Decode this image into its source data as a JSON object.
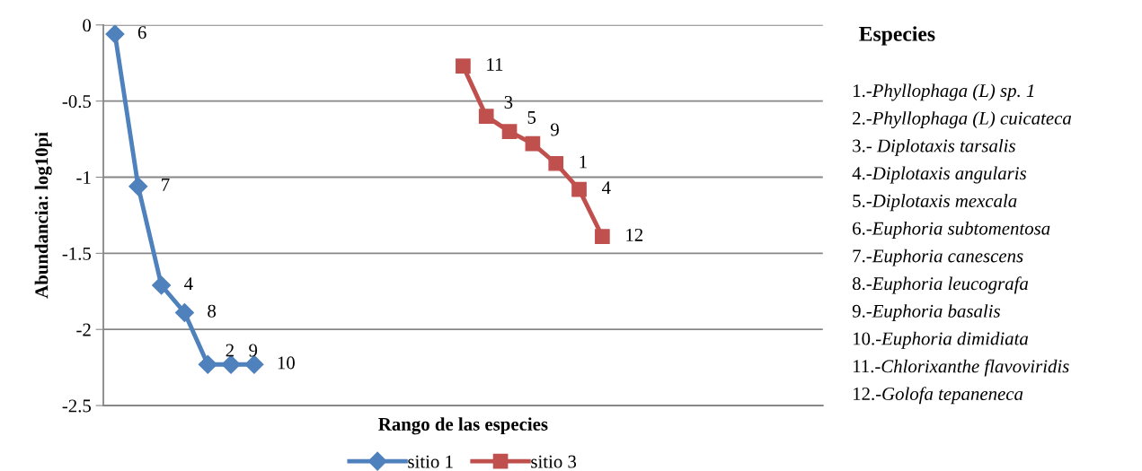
{
  "chart_data": {
    "type": "line",
    "xlabel": "Rango de las especies",
    "ylabel": "Abundancia: log10pi",
    "categories": [
      null,
      null,
      null,
      null,
      null,
      null,
      null,
      null,
      null,
      null,
      null,
      null,
      null,
      null,
      null,
      null,
      null,
      null,
      null,
      null,
      null,
      null,
      null,
      null,
      null,
      null,
      null,
      null,
      null,
      null,
      null
    ],
    "series": [
      {
        "name": "sitio 1",
        "color": "#4f81bd",
        "marker": "diamond",
        "values": [
          -0.06,
          -1.06,
          -1.71,
          -1.89,
          -2.23,
          -2.23,
          -2.23,
          null,
          null,
          null,
          null,
          null,
          null,
          null,
          null,
          null,
          null,
          null,
          null,
          null,
          null,
          null,
          null,
          null,
          null,
          null,
          null,
          null,
          null,
          null,
          null
        ]
      },
      {
        "name": "sitio 3",
        "color": "#c0504d",
        "marker": "square",
        "values": [
          null,
          null,
          null,
          null,
          null,
          null,
          null,
          null,
          null,
          null,
          null,
          null,
          null,
          null,
          null,
          -0.27,
          -0.6,
          -0.7,
          -0.78,
          -0.91,
          -1.08,
          -1.39,
          null,
          null,
          null,
          null,
          null,
          null,
          null,
          null,
          null
        ]
      }
    ],
    "ylim": [
      -2.5,
      0
    ],
    "yticks": [
      -2.5,
      -2,
      -1.5,
      -1,
      -0.5,
      0
    ],
    "grid": "y",
    "legend": "bottom",
    "line_style": "solid",
    "annotations": [
      "6",
      "7",
      "4",
      "8",
      "2",
      "9",
      "10",
      "11",
      "3",
      "5",
      "9",
      "1",
      "4",
      "12",
      "Especies",
      "1.-Phyllophaga (L) sp. 1",
      "2.-Phyllophaga (L) cuicateca",
      "3.- Diplotaxis tarsalis",
      "4.-Diplotaxis angularis",
      "5.-Diplotaxis mexcala",
      "6.-Euphoria subtomentosa",
      "7.-Euphoria canescens",
      "8.-Euphoria leucografa",
      "9.-Euphoria basalis",
      "10.-Euphoria dimidiata",
      "11.-Chlorixanthe flavoviridis",
      "12.-Golofa tepaneneca"
    ]
  }
}
